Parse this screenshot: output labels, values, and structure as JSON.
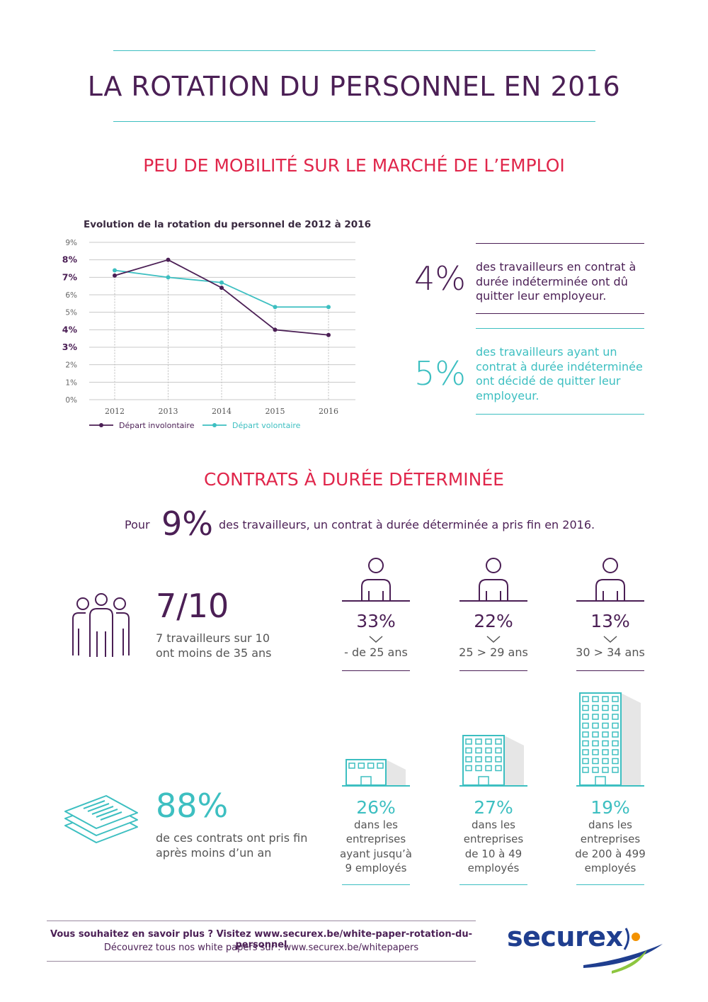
{
  "header": {
    "title": "LA ROTATION DU PERSONNEL EN 2016"
  },
  "section1": {
    "title": "PEU DE MOBILITÉ SUR LE MARCHÉ DE L’EMPLOI",
    "stats": [
      {
        "value": "4%",
        "text": [
          "des travailleurs en contrat à",
          "durée indéterminée ont dû",
          "quitter leur employeur."
        ]
      },
      {
        "value": "5%",
        "text": [
          "des travailleurs ayant un",
          "contrat à durée indéterminée",
          "ont décidé de quitter leur",
          "employeur."
        ]
      }
    ]
  },
  "chart_data": {
    "type": "line",
    "title": "Evolution de la rotation du personnel de 2012 à 2016",
    "categories": [
      "2012",
      "2013",
      "2014",
      "2015",
      "2016"
    ],
    "y_ticks": [
      "0%",
      "1%",
      "2%",
      "3%",
      "4%",
      "5%",
      "6%",
      "7%",
      "8%",
      "9%"
    ],
    "bold_ticks": [
      "3%",
      "4%",
      "7%",
      "8%"
    ],
    "ylim": [
      0,
      9
    ],
    "grid": true,
    "legend_position": "bottom",
    "series": [
      {
        "name": "Départ involontaire",
        "color": "#4b1f55",
        "values": [
          7.1,
          8.0,
          6.4,
          4.0,
          3.7
        ]
      },
      {
        "name": "Départ volontaire",
        "color": "#3dbfc1",
        "values": [
          7.4,
          7.0,
          6.7,
          5.3,
          5.3
        ]
      }
    ]
  },
  "section2": {
    "title": "CONTRATS À DURÉE DÉTERMINÉE",
    "intro_prefix": "Pour",
    "intro_value": "9%",
    "intro_suffix": "des travailleurs, un contrat à durée déterminée a pris fin en 2016.",
    "young": {
      "value": "7/10",
      "text": [
        "7 travailleurs sur 10",
        "ont moins de 35 ans"
      ]
    },
    "age_groups": [
      {
        "value": "33%",
        "label": "- de 25 ans"
      },
      {
        "value": "22%",
        "label": "25 > 29 ans"
      },
      {
        "value": "13%",
        "label": "30 > 34 ans"
      }
    ],
    "contracts": {
      "value": "88%",
      "text": [
        "de ces contrats ont pris fin",
        "après moins d’un an"
      ]
    },
    "companies": [
      {
        "value": "26%",
        "text": [
          "dans les",
          "entreprises",
          "ayant jusqu’à",
          "9 employés"
        ]
      },
      {
        "value": "27%",
        "text": [
          "dans les",
          "entreprises",
          "de 10 à 49",
          "employés"
        ]
      },
      {
        "value": "19%",
        "text": [
          "dans les",
          "entreprises",
          "de 200 à 499",
          "employés"
        ]
      }
    ]
  },
  "footer": {
    "line1": "Vous souhaitez en savoir plus ? Visitez www.securex.be/white-paper-rotation-du-personnel",
    "line2": "Découvrez tous nos white papers sur : www.securex.be/whitepapers",
    "logo_text": "securex"
  },
  "colors": {
    "purple": "#4b1f55",
    "teal": "#3dbfc1",
    "red": "#e0264b",
    "navy": "#1f3e8f",
    "orange": "#f39200",
    "green": "#8dc63f"
  }
}
